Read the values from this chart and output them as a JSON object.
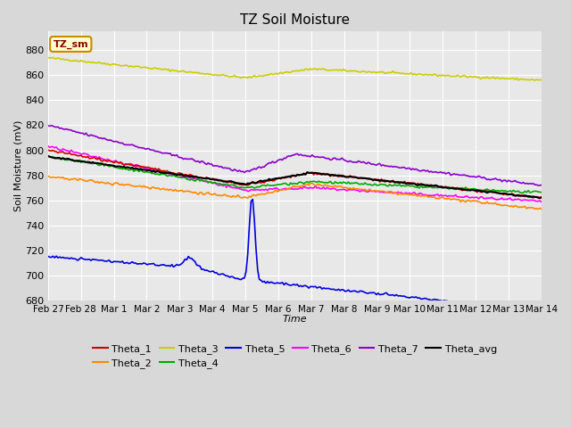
{
  "title": "TZ Soil Moisture",
  "xlabel": "Time",
  "ylabel": "Soil Moisture (mV)",
  "ylim": [
    680,
    895
  ],
  "legend_label": "TZ_sm",
  "xtick_positions": [
    0,
    1,
    2,
    3,
    4,
    5,
    6,
    7,
    8,
    9,
    10,
    11,
    12,
    13,
    14,
    15
  ],
  "xtick_labels": [
    "Feb 27",
    "Feb 28",
    "Mar 1",
    "Mar 2",
    "Mar 3",
    "Mar 4",
    "Mar 5",
    "Mar 6",
    "Mar 7",
    "Mar 8",
    "Mar 9",
    "Mar 10",
    "Mar 11",
    "Mar 12",
    "Mar 13",
    "Mar 14"
  ],
  "ytick_values": [
    680,
    700,
    720,
    740,
    760,
    780,
    800,
    820,
    840,
    860,
    880
  ],
  "colors": {
    "Theta_1": "#cc0000",
    "Theta_2": "#ff8800",
    "Theta_3": "#cccc00",
    "Theta_4": "#00aa00",
    "Theta_5": "#0000dd",
    "Theta_6": "#ff00ff",
    "Theta_7": "#8800cc",
    "Theta_avg": "#000000"
  }
}
